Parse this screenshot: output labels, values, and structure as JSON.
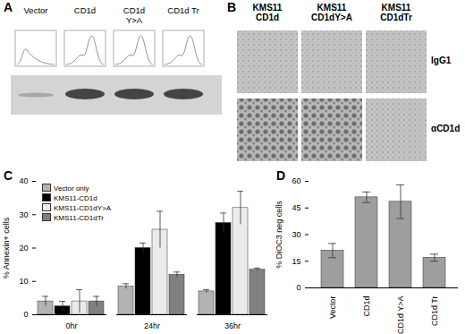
{
  "panel_A": {
    "letter": "A",
    "lanes": [
      "Vector",
      "CD1d",
      "CD1d Y>A",
      "CD1d Tr"
    ]
  },
  "panel_B": {
    "letter": "B",
    "columns": [
      "KMS11 CD1d",
      "KMS11 CD1dY>A",
      "KMS11 CD1dTr"
    ],
    "rows": [
      "IgG1",
      "αCD1d"
    ]
  },
  "chart_data": [
    {
      "type": "bar",
      "title": "C",
      "ylabel": "% Annexin+ cells",
      "categories": [
        "0hr",
        "24hr",
        "36hr"
      ],
      "series": [
        {
          "name": "Vector only",
          "color": "#b3b3b3",
          "values": [
            4,
            8.5,
            7
          ],
          "errors": [
            1.5,
            0.8,
            0.5
          ]
        },
        {
          "name": "KMS11-CD1d",
          "color": "#000000",
          "values": [
            2.5,
            20,
            27.5
          ],
          "errors": [
            1.5,
            1.5,
            3
          ]
        },
        {
          "name": "KMS11-CD1dY>A",
          "color": "#ebebeb",
          "values": [
            4,
            25.5,
            32
          ],
          "errors": [
            3.5,
            5.5,
            5
          ]
        },
        {
          "name": "KMS11-CD1dTr",
          "color": "#808080",
          "values": [
            4,
            12,
            13.5
          ],
          "errors": [
            1.5,
            0.8,
            0.5
          ]
        }
      ],
      "ylim": [
        0,
        40
      ],
      "yticks": [
        0,
        10,
        20,
        30,
        40
      ],
      "legend": "upper left"
    },
    {
      "type": "bar",
      "title": "D",
      "ylabel": "% DiOC3 neg cells",
      "categories": [
        "Vector",
        "CD1d",
        "CD1d Y>A",
        "CD1d Tr"
      ],
      "values": [
        21,
        51,
        48.5,
        17
      ],
      "errors": [
        4,
        3,
        9.5,
        2
      ],
      "color": "#9e9e9e",
      "ylim": [
        0,
        60
      ],
      "yticks": [
        0,
        15,
        30,
        45,
        60
      ]
    }
  ]
}
